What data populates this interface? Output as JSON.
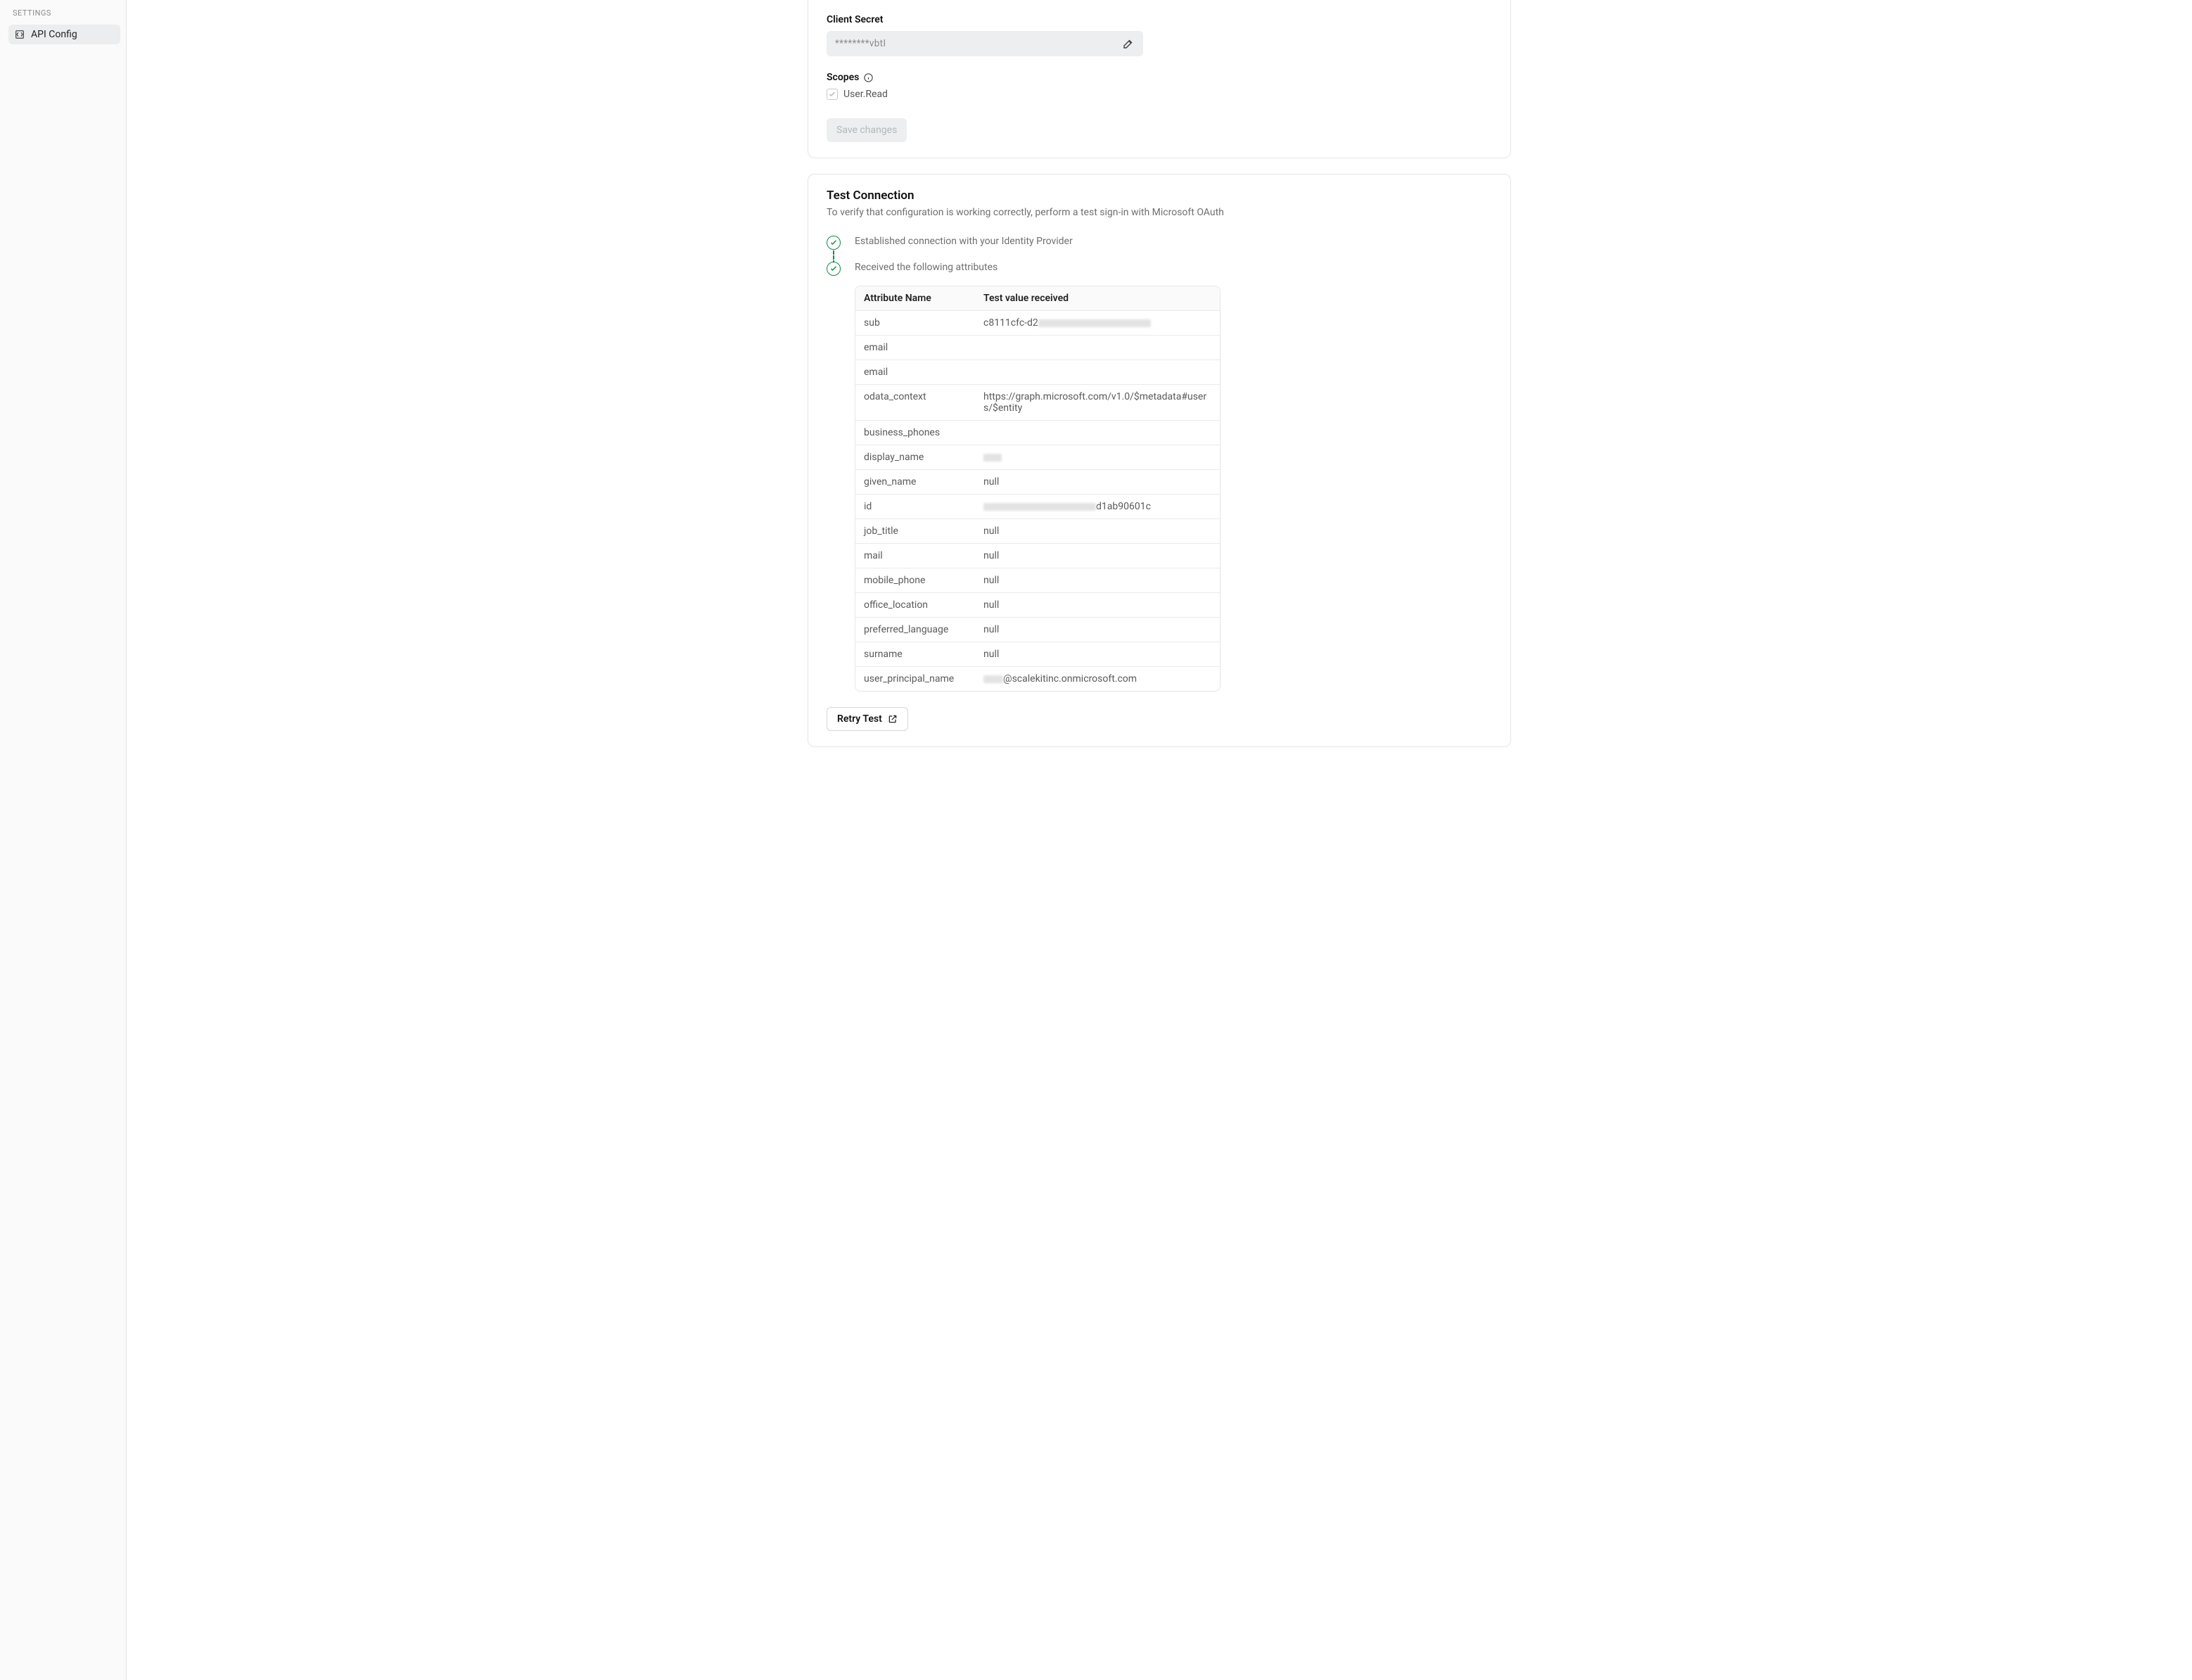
{
  "sidebar": {
    "heading": "SETTINGS",
    "items": [
      {
        "label": "API Config"
      }
    ]
  },
  "config": {
    "client_secret_label": "Client Secret",
    "client_secret_value": "********vbtI",
    "scopes_label": "Scopes",
    "scopes": [
      {
        "label": "User.Read",
        "checked": true
      }
    ],
    "save_label": "Save changes"
  },
  "test": {
    "title": "Test Connection",
    "description": "To verify that configuration is working correctly, perform a test sign-in with Microsoft OAuth",
    "steps": [
      "Established connection with your Identity Provider",
      "Received the following attributes"
    ],
    "attributes_table": {
      "columns": [
        "Attribute Name",
        "Test value received"
      ],
      "rows": [
        {
          "name": "sub",
          "prefix": "c8111cfc-d2",
          "blur_width": 160
        },
        {
          "name": "email",
          "value": ""
        },
        {
          "name": "email",
          "value": ""
        },
        {
          "name": "odata_context",
          "value": "https://graph.microsoft.com/v1.0/$metadata#users/$entity"
        },
        {
          "name": "business_phones",
          "value": ""
        },
        {
          "name": "display_name",
          "blur_width": 26
        },
        {
          "name": "given_name",
          "value": "null"
        },
        {
          "name": "id",
          "blur_width": 160,
          "suffix": "d1ab90601c"
        },
        {
          "name": "job_title",
          "value": "null"
        },
        {
          "name": "mail",
          "value": "null"
        },
        {
          "name": "mobile_phone",
          "value": "null"
        },
        {
          "name": "office_location",
          "value": "null"
        },
        {
          "name": "preferred_language",
          "value": "null"
        },
        {
          "name": "surname",
          "value": "null"
        },
        {
          "name": "user_principal_name",
          "blur_width": 28,
          "suffix": " @scalekitinc.onmicrosoft.com"
        }
      ]
    },
    "retry_label": "Retry Test"
  },
  "colors": {
    "success": "#0f8c44",
    "border": "#e6e6e6",
    "bg_sidebar": "#fafafa",
    "text_muted": "#6f6f6f"
  }
}
